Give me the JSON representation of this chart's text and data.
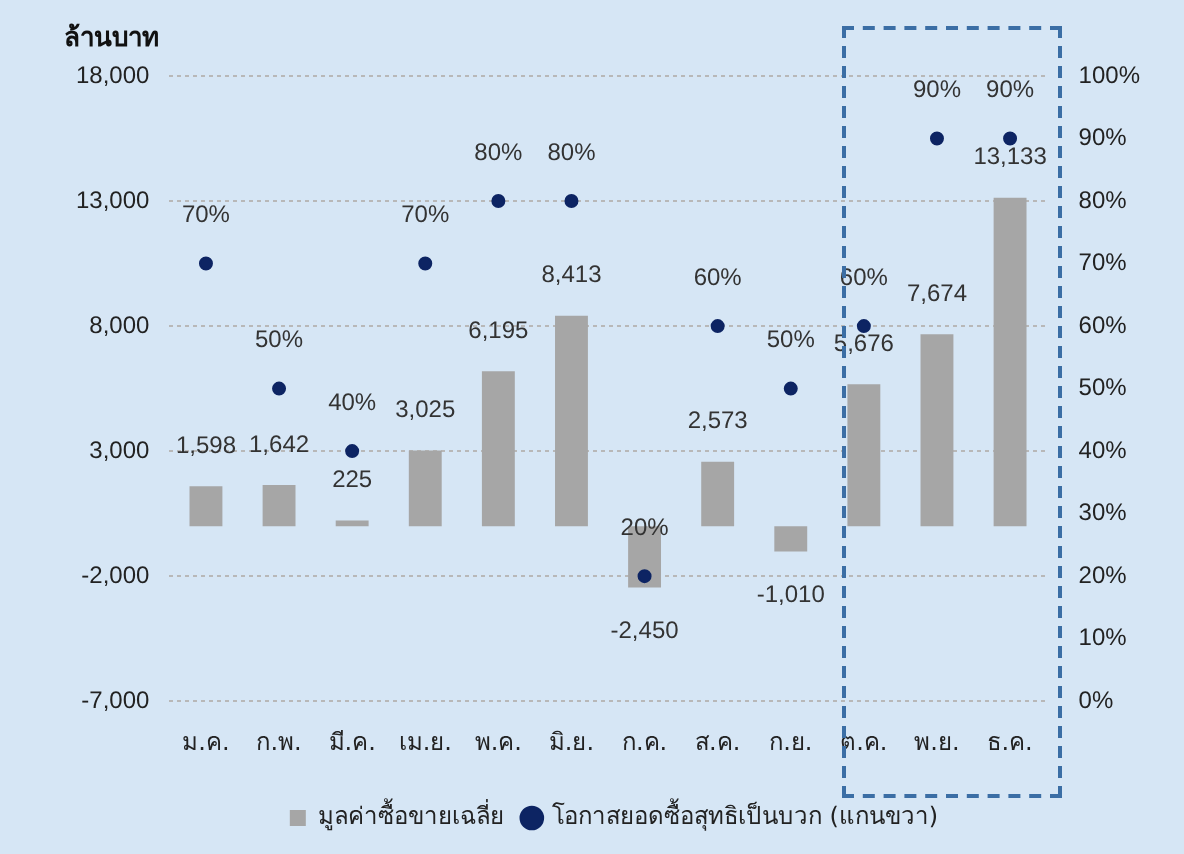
{
  "chart_data": {
    "type": "bar",
    "ylabel": "ล้านบาท",
    "categories": [
      "ม.ค.",
      "ก.พ.",
      "มี.ค.",
      "เม.ย.",
      "พ.ค.",
      "มิ.ย.",
      "ก.ค.",
      "ส.ค.",
      "ก.ย.",
      "ต.ค.",
      "พ.ย.",
      "ธ.ค."
    ],
    "series": [
      {
        "name": "มูลค่าซื้อขายเฉลี่ย",
        "color": "#a6a6a6",
        "values": [
          1598,
          1642,
          225,
          3025,
          6195,
          8413,
          -2450,
          2573,
          -1010,
          5676,
          7674,
          13133
        ],
        "value_labels": [
          "1,598",
          "1,642",
          "225",
          "3,025",
          "6,195",
          "8,413",
          "-2,450",
          "2,573",
          "-1,010",
          "5,676",
          "7,674",
          "13,133"
        ]
      },
      {
        "name": "โอกาสยอดซื้อสุทธิเป็นบวก (แกนขวา)",
        "type": "scatter",
        "axis": "y2",
        "color": "#0d2463",
        "values": [
          70,
          50,
          40,
          70,
          80,
          80,
          20,
          60,
          50,
          60,
          90,
          90
        ],
        "value_labels": [
          "70%",
          "50%",
          "40%",
          "70%",
          "80%",
          "80%",
          "20%",
          "60%",
          "50%",
          "60%",
          "90%",
          "90%"
        ]
      }
    ],
    "ylim": [
      -7000,
      18000
    ],
    "yticks": [
      {
        "value": -7000,
        "label": "-7,000"
      },
      {
        "value": -2000,
        "label": "-2,000"
      },
      {
        "value": 3000,
        "label": "3,000"
      },
      {
        "value": 8000,
        "label": "8,000"
      },
      {
        "value": 13000,
        "label": "13,000"
      },
      {
        "value": 18000,
        "label": "18,000"
      }
    ],
    "y2lim": [
      0,
      100
    ],
    "y2ticks": [
      {
        "value": 0,
        "label": "0%"
      },
      {
        "value": 10,
        "label": "10%"
      },
      {
        "value": 20,
        "label": "20%"
      },
      {
        "value": 30,
        "label": "30%"
      },
      {
        "value": 40,
        "label": "40%"
      },
      {
        "value": 50,
        "label": "50%"
      },
      {
        "value": 60,
        "label": "60%"
      },
      {
        "value": 70,
        "label": "70%"
      },
      {
        "value": 80,
        "label": "80%"
      },
      {
        "value": 90,
        "label": "90%"
      },
      {
        "value": 100,
        "label": "100%"
      }
    ],
    "grid": "y",
    "legend": "bottom",
    "marker": "circle"
  }
}
